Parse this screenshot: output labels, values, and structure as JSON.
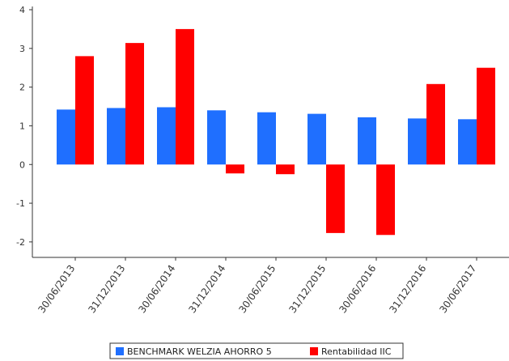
{
  "chart_data": {
    "type": "bar",
    "title": "",
    "xlabel": "",
    "ylabel": "",
    "categories": [
      "30/06/2013",
      "31/12/2013",
      "30/06/2014",
      "31/12/2014",
      "30/06/2015",
      "31/12/2015",
      "30/06/2016",
      "31/12/2016",
      "30/06/2017"
    ],
    "series": [
      {
        "name": "BENCHMARK WELZIA AHORRO 5",
        "color": "#1f6fff",
        "values": [
          1.42,
          1.46,
          1.48,
          1.4,
          1.35,
          1.31,
          1.22,
          1.19,
          1.17
        ]
      },
      {
        "name": "Rentabilidad IIC",
        "color": "#ff0000",
        "values": [
          2.8,
          3.14,
          3.5,
          -0.23,
          -0.25,
          -1.77,
          -1.82,
          2.08,
          2.5
        ]
      }
    ],
    "ylim": [
      -2.4,
      4
    ],
    "yticks": [
      -2,
      -1,
      0,
      1,
      2,
      3,
      4
    ],
    "grid": false,
    "legend_position": "bottom"
  }
}
